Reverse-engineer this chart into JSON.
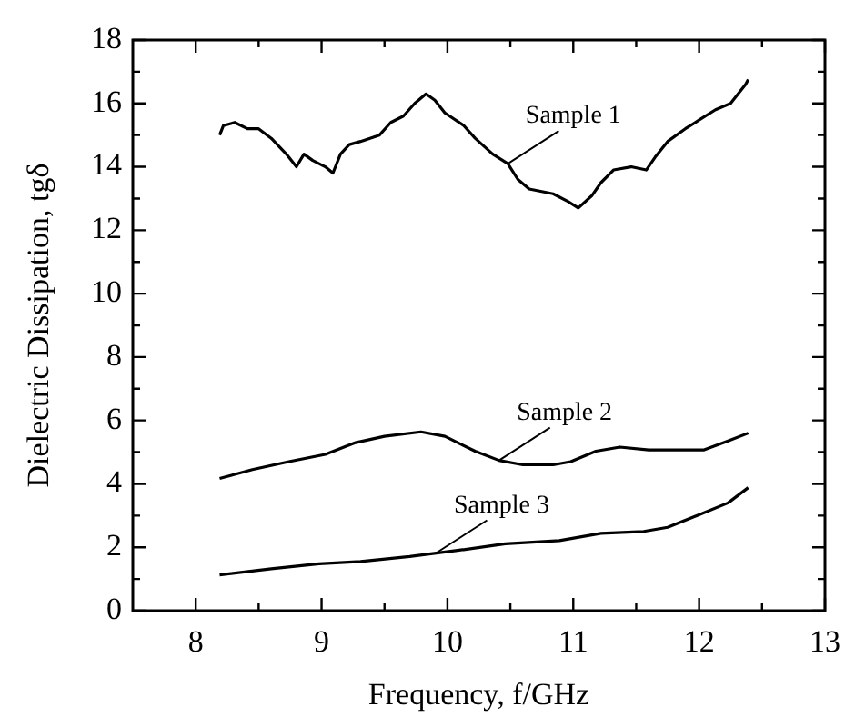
{
  "chart_data": {
    "type": "line",
    "xlabel": "Frequency, f/GHz",
    "ylabel": "Dielectric Dissipation, tgδ",
    "xlim": [
      7.5,
      13
    ],
    "ylim": [
      0,
      18
    ],
    "xticks": [
      8,
      {
        "value": 8.5,
        "label": null
      },
      9,
      {
        "value": 9.5,
        "label": null
      },
      10,
      {
        "value": 10.5,
        "label": null
      },
      11,
      {
        "value": 11.5,
        "label": null
      },
      12,
      {
        "value": 12.5,
        "label": null
      },
      13
    ],
    "yticks": [
      0,
      {
        "value": 1,
        "label": null
      },
      2,
      {
        "value": 3,
        "label": null
      },
      4,
      {
        "value": 5,
        "label": null
      },
      6,
      {
        "value": 7,
        "label": null
      },
      8,
      {
        "value": 9,
        "label": null
      },
      10,
      {
        "value": 11,
        "label": null
      },
      12,
      {
        "value": 13,
        "label": null
      },
      14,
      {
        "value": 15,
        "label": null
      },
      16,
      {
        "value": 17,
        "label": null
      },
      18
    ],
    "grid": false,
    "legend": false,
    "marker": "none",
    "line_style": "solid",
    "annotations": [
      {
        "text": "Sample 1",
        "x": 10.48,
        "y": 14.1
      },
      {
        "text": "Sample 2",
        "x": 10.41,
        "y": 4.74
      },
      {
        "text": "Sample 3",
        "x": 9.91,
        "y": 1.82
      }
    ],
    "series": [
      {
        "color": "#000000",
        "x": [
          8.19,
          8.22,
          8.31,
          8.41,
          8.5,
          8.6,
          8.72,
          8.8,
          8.86,
          8.93,
          9.03,
          9.09,
          9.15,
          9.22,
          9.31,
          9.46,
          9.55,
          9.65,
          9.74,
          9.83,
          9.9,
          9.98,
          10.13,
          10.22,
          10.36,
          10.48,
          10.56,
          10.65,
          10.84,
          10.96,
          11.04,
          11.15,
          11.22,
          11.32,
          11.46,
          11.58,
          11.65,
          11.75,
          11.89,
          12.01,
          12.13,
          12.25,
          12.37,
          12.39
        ],
        "values": [
          15.0,
          15.3,
          15.4,
          15.2,
          15.2,
          14.9,
          14.4,
          14.0,
          14.4,
          14.2,
          14.0,
          13.8,
          14.4,
          14.7,
          14.8,
          15.0,
          15.4,
          15.6,
          16.0,
          16.3,
          16.1,
          15.7,
          15.3,
          14.9,
          14.4,
          14.1,
          13.6,
          13.3,
          13.15,
          12.9,
          12.7,
          13.1,
          13.5,
          13.9,
          14.0,
          13.9,
          14.3,
          14.8,
          15.2,
          15.5,
          15.8,
          16.0,
          16.6,
          16.75
        ]
      },
      {
        "color": "#000000",
        "x": [
          8.19,
          8.45,
          8.74,
          9.03,
          9.27,
          9.5,
          9.79,
          9.98,
          10.22,
          10.41,
          10.6,
          10.84,
          10.98,
          11.18,
          11.37,
          11.6,
          11.84,
          12.04,
          12.23,
          12.39
        ],
        "values": [
          4.17,
          4.45,
          4.7,
          4.93,
          5.3,
          5.5,
          5.64,
          5.5,
          5.03,
          4.74,
          4.6,
          4.6,
          4.7,
          5.03,
          5.16,
          5.07,
          5.07,
          5.07,
          5.35,
          5.6
        ]
      },
      {
        "color": "#000000",
        "x": [
          8.19,
          8.6,
          8.98,
          9.31,
          9.7,
          10.08,
          10.46,
          10.89,
          11.22,
          11.56,
          11.75,
          11.99,
          12.23,
          12.39
        ],
        "values": [
          1.13,
          1.32,
          1.48,
          1.55,
          1.71,
          1.9,
          2.11,
          2.21,
          2.44,
          2.5,
          2.63,
          3.01,
          3.4,
          3.88
        ]
      }
    ]
  }
}
